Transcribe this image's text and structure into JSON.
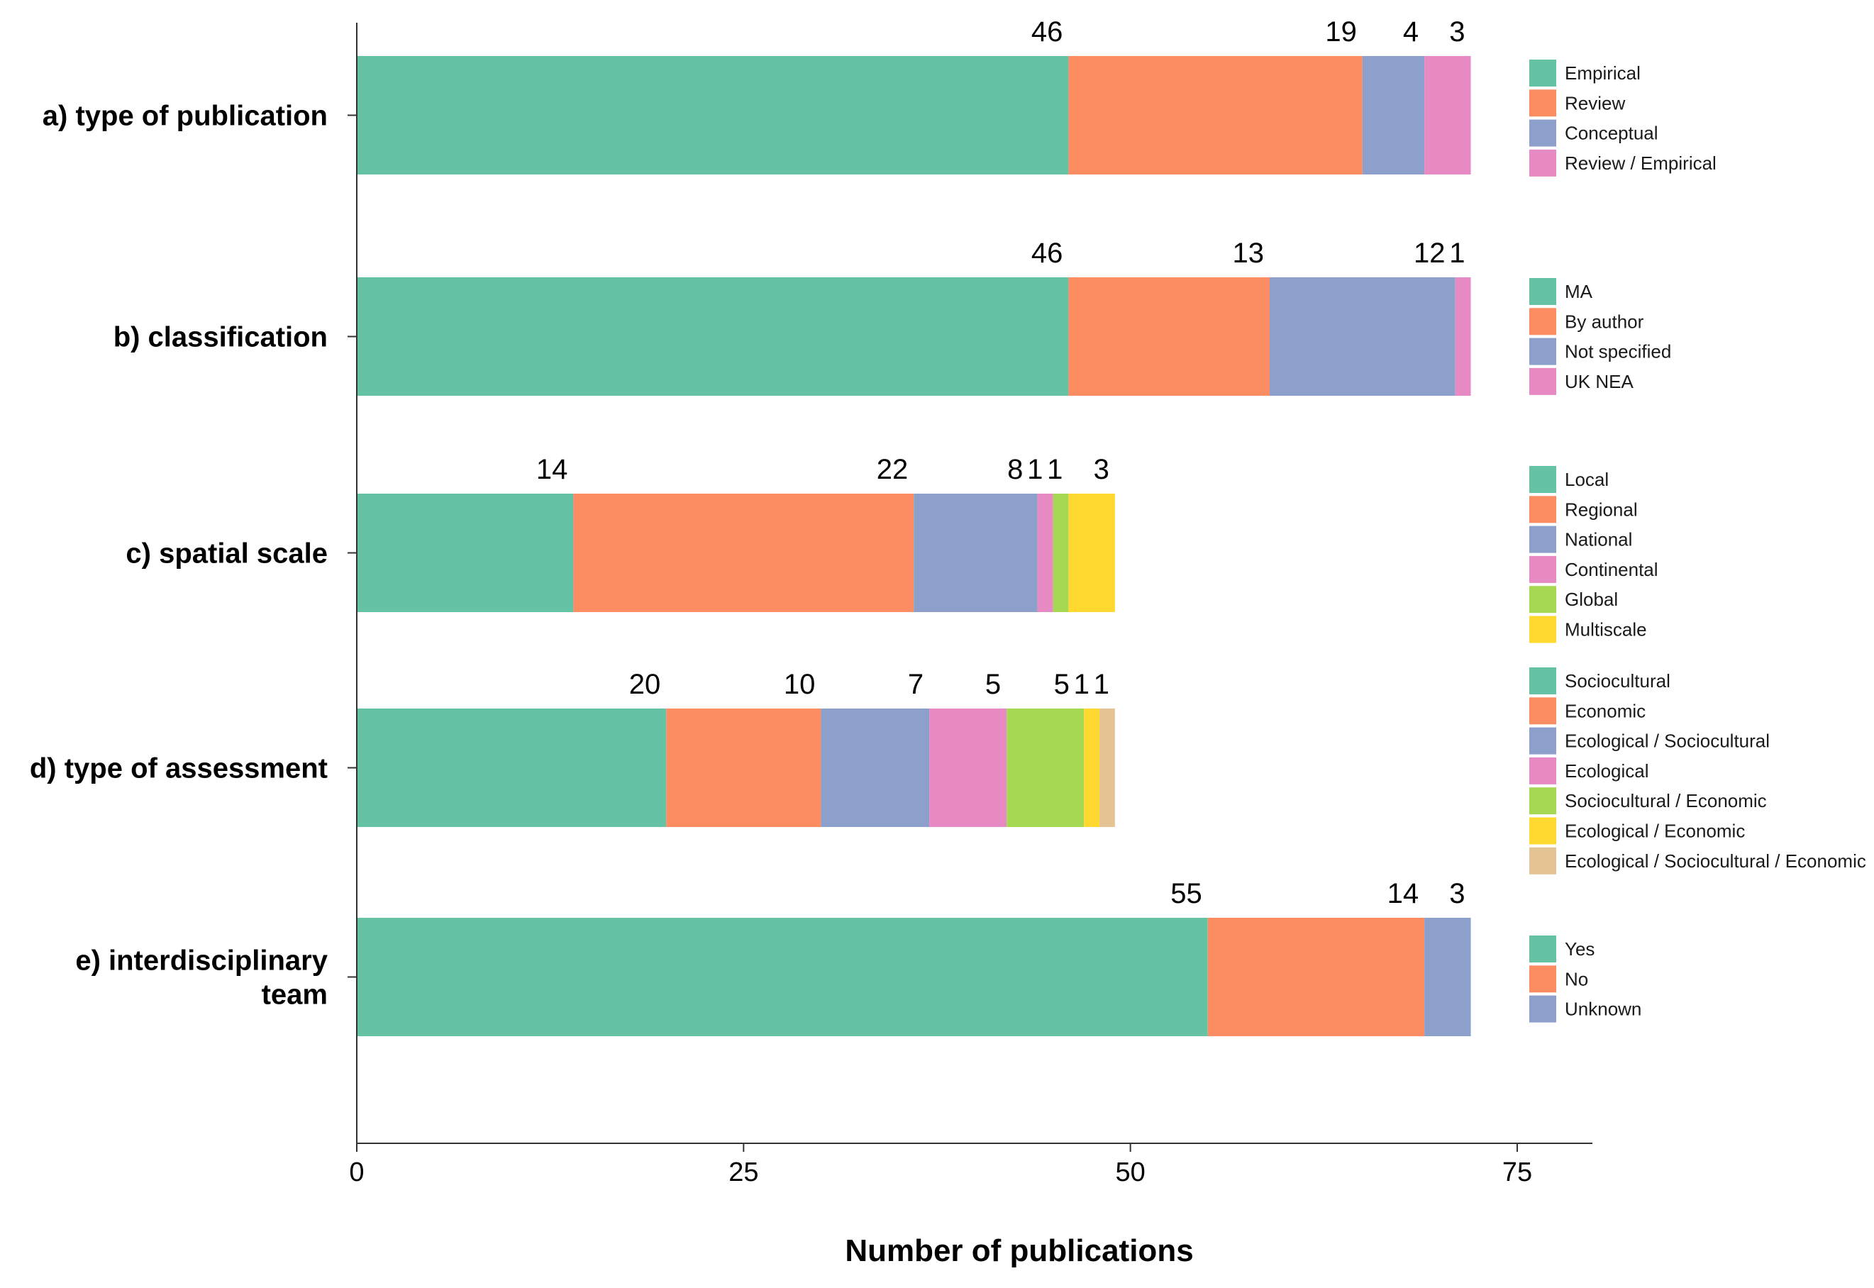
{
  "chart_data": {
    "type": "bar",
    "orientation": "horizontal",
    "stacked": true,
    "xlabel": "Number of publications",
    "ylabel": "",
    "xlim": [
      0,
      80
    ],
    "xticks": [
      0,
      25,
      50,
      75
    ],
    "grid": false,
    "legend_position": "right",
    "colors": [
      "#66c2a5",
      "#fc8d62",
      "#8da0cb",
      "#e78ac3",
      "#a6d854",
      "#ffd92f",
      "#e5c494"
    ],
    "groups": [
      {
        "label_lines": [
          "a) type of publication"
        ],
        "segments": [
          {
            "name": "Empirical",
            "value": 46
          },
          {
            "name": "Review",
            "value": 19
          },
          {
            "name": "Conceptual",
            "value": 4
          },
          {
            "name": "Review / Empirical",
            "value": 3
          }
        ]
      },
      {
        "label_lines": [
          "b) classification"
        ],
        "segments": [
          {
            "name": "MA",
            "value": 46
          },
          {
            "name": "By author",
            "value": 13
          },
          {
            "name": "Not specified",
            "value": 12
          },
          {
            "name": "UK NEA",
            "value": 1
          }
        ]
      },
      {
        "label_lines": [
          "c) spatial scale"
        ],
        "segments": [
          {
            "name": "Local",
            "value": 14
          },
          {
            "name": "Regional",
            "value": 22
          },
          {
            "name": "National",
            "value": 8
          },
          {
            "name": "Continental",
            "value": 1
          },
          {
            "name": "Global",
            "value": 1
          },
          {
            "name": "Multiscale",
            "value": 3
          }
        ]
      },
      {
        "label_lines": [
          "d) type of assessment"
        ],
        "segments": [
          {
            "name": "Sociocultural",
            "value": 20
          },
          {
            "name": "Economic",
            "value": 10
          },
          {
            "name": "Ecological / Sociocultural",
            "value": 7
          },
          {
            "name": "Ecological",
            "value": 5
          },
          {
            "name": "Sociocultural / Economic",
            "value": 5
          },
          {
            "name": "Ecological / Economic",
            "value": 1
          },
          {
            "name": "Ecological / Sociocultural / Economic",
            "value": 1
          }
        ]
      },
      {
        "label_lines": [
          "e) interdisciplinary",
          "team"
        ],
        "segments": [
          {
            "name": "Yes",
            "value": 55
          },
          {
            "name": "No",
            "value": 14
          },
          {
            "name": "Unknown",
            "value": 3
          }
        ]
      }
    ]
  }
}
